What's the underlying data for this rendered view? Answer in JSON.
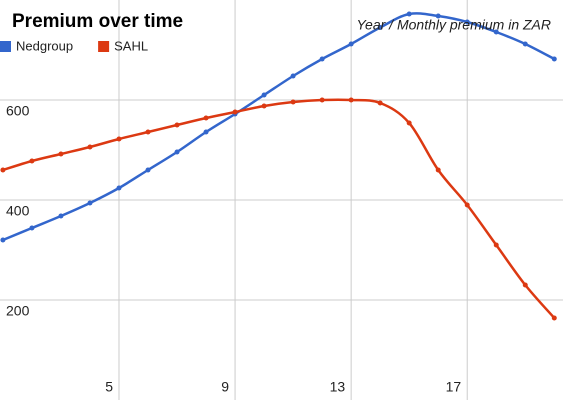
{
  "chart_data": {
    "type": "line",
    "title": "Premium over time",
    "annotation": "Year / Monthly premium in ZAR",
    "x": [
      1,
      2,
      3,
      4,
      5,
      6,
      7,
      8,
      9,
      10,
      11,
      12,
      13,
      14,
      15,
      16,
      17,
      18,
      19,
      20
    ],
    "series": [
      {
        "name": "Nedgroup",
        "color": "#3366cc",
        "values": [
          320,
          344,
          368,
          394,
          424,
          460,
          496,
          536,
          572,
          610,
          648,
          682,
          712,
          745,
          772,
          768,
          756,
          736,
          712,
          682
        ]
      },
      {
        "name": "SAHL",
        "color": "#dc3912",
        "values": [
          460,
          478,
          492,
          506,
          522,
          536,
          550,
          564,
          576,
          588,
          596,
          600,
          600,
          594,
          554,
          460,
          390,
          310,
          230,
          164
        ]
      }
    ],
    "xlim": [
      0.9,
      20.3
    ],
    "ylim": [
      0,
      800
    ],
    "xticks": [
      5,
      9,
      13,
      17
    ],
    "yticks": [
      200,
      400,
      600
    ],
    "grid": true
  }
}
